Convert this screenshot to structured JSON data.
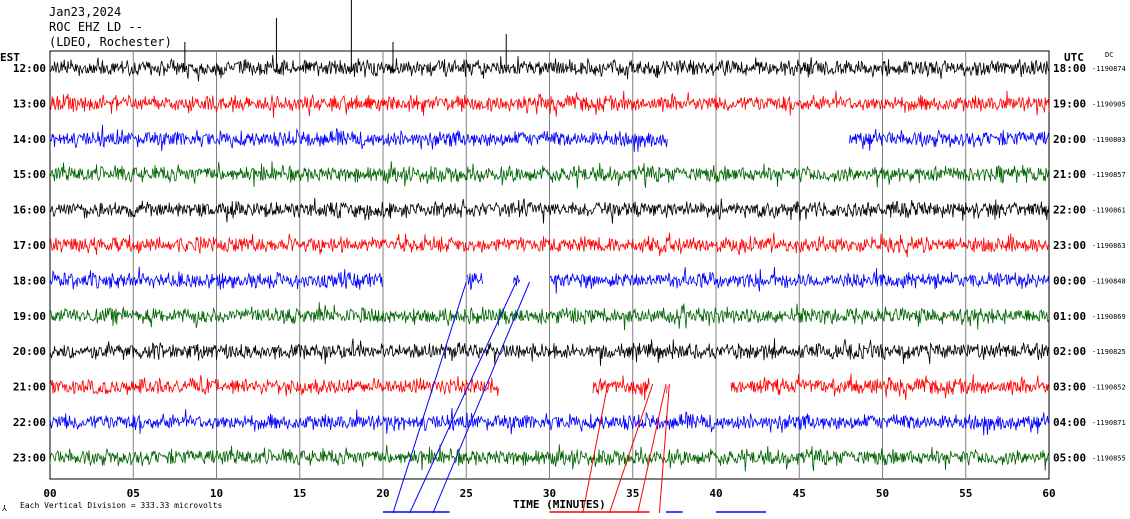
{
  "header": {
    "date": "Jan23,2024",
    "station": "ROC EHZ LD --",
    "network": "(LDEO, Rochester)",
    "left_zone": "EST",
    "right_zone": "UTC",
    "dc_label": "DC"
  },
  "footer": {
    "scale_note": "Each Vertical Division =  333.33 microvolts",
    "x_title": "TIME (MINUTES)"
  },
  "chart_data": {
    "type": "line",
    "title": "Jan23,2024",
    "xlabel": "TIME (MINUTES)",
    "xlim": [
      0,
      60
    ],
    "x_ticks": [
      "00",
      "05",
      "10",
      "15",
      "20",
      "25",
      "30",
      "35",
      "40",
      "45",
      "50",
      "55",
      "60"
    ],
    "grid": true,
    "colors": {
      "black": "#000000",
      "red": "#ff0000",
      "blue": "#0000ff",
      "green": "#006400"
    },
    "rows": [
      {
        "est": "12:00",
        "utc": "18:00",
        "dc": "-1190874",
        "color": "black",
        "gaps": []
      },
      {
        "est": "13:00",
        "utc": "19:00",
        "dc": "-1190905",
        "color": "red",
        "gaps": []
      },
      {
        "est": "14:00",
        "utc": "20:00",
        "dc": "-1190803",
        "color": "blue",
        "gaps": [
          [
            37.1,
            48.0
          ]
        ]
      },
      {
        "est": "15:00",
        "utc": "21:00",
        "dc": "-1190857",
        "color": "green",
        "gaps": []
      },
      {
        "est": "16:00",
        "utc": "22:00",
        "dc": "-1190861",
        "color": "black",
        "gaps": []
      },
      {
        "est": "17:00",
        "utc": "23:00",
        "dc": "-1190863",
        "color": "red",
        "gaps": []
      },
      {
        "est": "18:00",
        "utc": "00:00",
        "dc": "-1190848",
        "color": "blue",
        "gaps": [
          [
            20.0,
            25.0
          ],
          [
            26.0,
            27.8
          ],
          [
            28.2,
            30.0
          ]
        ]
      },
      {
        "est": "19:00",
        "utc": "01:00",
        "dc": "-1190869",
        "color": "green",
        "gaps": []
      },
      {
        "est": "20:00",
        "utc": "02:00",
        "dc": "-1190825",
        "color": "black",
        "gaps": []
      },
      {
        "est": "21:00",
        "utc": "03:00",
        "dc": "-1190852",
        "color": "red",
        "gaps": [
          [
            27.0,
            32.6
          ],
          [
            36.0,
            37.0
          ],
          [
            37.1,
            40.9
          ]
        ]
      },
      {
        "est": "22:00",
        "utc": "04:00",
        "dc": "-1190871",
        "color": "blue",
        "gaps": []
      },
      {
        "est": "23:00",
        "utc": "05:00",
        "dc": "-1190855",
        "color": "green",
        "gaps": []
      }
    ]
  }
}
